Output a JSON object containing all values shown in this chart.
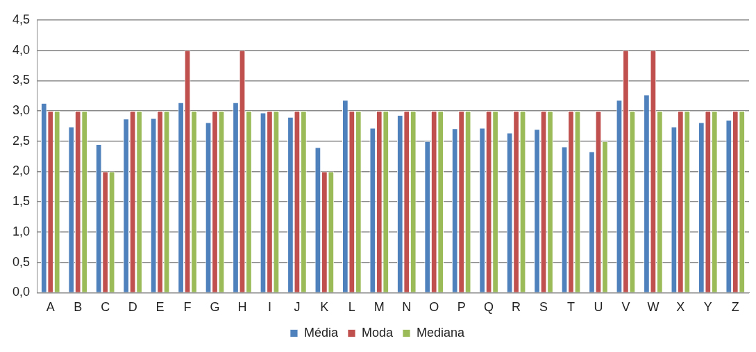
{
  "chart_data": {
    "type": "bar",
    "categories": [
      "A",
      "B",
      "C",
      "D",
      "E",
      "F",
      "G",
      "H",
      "I",
      "J",
      "K",
      "L",
      "M",
      "N",
      "O",
      "P",
      "Q",
      "R",
      "S",
      "T",
      "U",
      "V",
      "W",
      "X",
      "Y",
      "Z"
    ],
    "series": [
      {
        "name": "Média",
        "color": "#4f81bd",
        "values": [
          3.13,
          2.74,
          2.45,
          2.87,
          2.88,
          3.14,
          2.81,
          3.14,
          2.97,
          2.9,
          2.4,
          3.18,
          2.72,
          2.93,
          2.5,
          2.71,
          2.72,
          2.64,
          2.7,
          2.41,
          2.33,
          3.18,
          3.27,
          2.74,
          2.81,
          2.85
        ]
      },
      {
        "name": "Moda",
        "color": "#c0504d",
        "values": [
          3,
          3,
          2,
          3,
          3,
          4,
          3,
          4,
          3,
          3,
          2,
          3,
          3,
          3,
          3,
          3,
          3,
          3,
          3,
          3,
          3,
          4,
          4,
          3,
          3,
          3
        ]
      },
      {
        "name": "Mediana",
        "color": "#9bbb59",
        "values": [
          3,
          3,
          2,
          3,
          3,
          3,
          3,
          3,
          3,
          3,
          2,
          3,
          3,
          3,
          3,
          3,
          3,
          3,
          3,
          3,
          2.5,
          3,
          3,
          3,
          3,
          3
        ]
      }
    ],
    "ylim": [
      0,
      4.5
    ],
    "yticks": [
      {
        "value": 0,
        "label": "0,0"
      },
      {
        "value": 0.5,
        "label": "0,5"
      },
      {
        "value": 1,
        "label": "1,0"
      },
      {
        "value": 1.5,
        "label": "1,5"
      },
      {
        "value": 2,
        "label": "2,0"
      },
      {
        "value": 2.5,
        "label": "2,5"
      },
      {
        "value": 3,
        "label": "3,0"
      },
      {
        "value": 3.5,
        "label": "3,5"
      },
      {
        "value": 4,
        "label": "4,0"
      },
      {
        "value": 4.5,
        "label": "4,5"
      }
    ],
    "grid": "y",
    "legend": "bottom"
  }
}
